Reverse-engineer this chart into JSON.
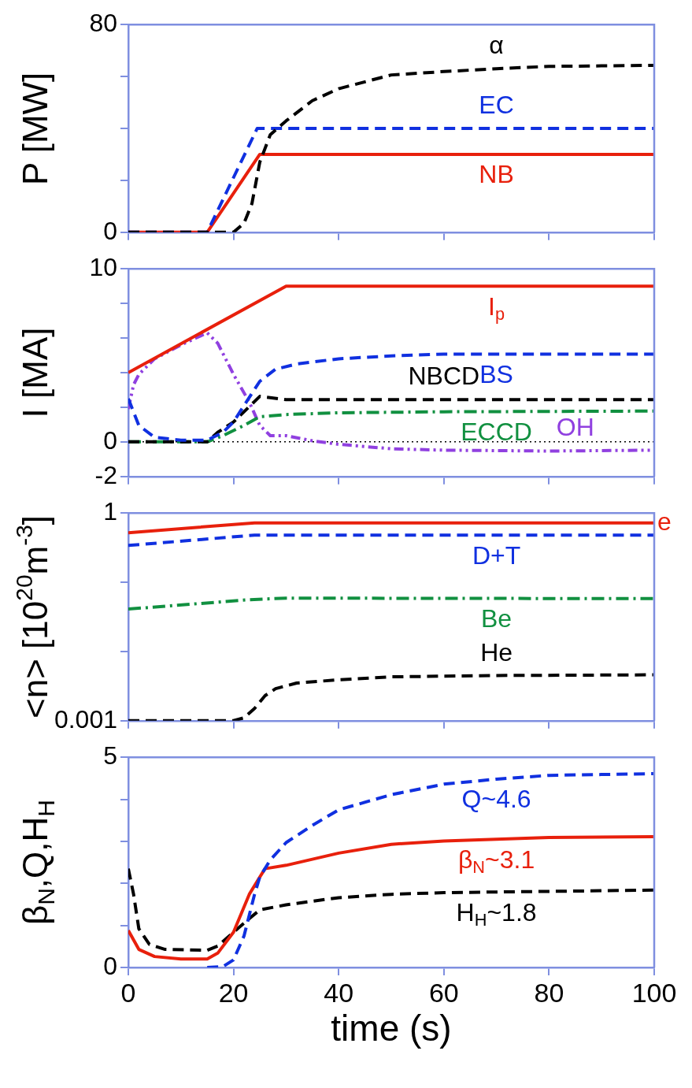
{
  "chart_data": [
    {
      "type": "line",
      "ylabel": "P [MW]",
      "xlim": [
        0,
        100
      ],
      "xticks": [
        0,
        20,
        40,
        60,
        80,
        100
      ],
      "ylim": [
        0,
        80
      ],
      "yticks": [
        0,
        {
          "value": 20,
          "label": null
        },
        {
          "value": 40,
          "label": null
        },
        {
          "value": 60,
          "label": null
        },
        80
      ],
      "tick_labels": "y",
      "grid": false,
      "legend": false,
      "marker": "none",
      "series": [
        {
          "name": "α",
          "color": "#000000",
          "line_style": "dashed",
          "x": [
            0,
            20,
            22,
            23.5,
            25,
            27,
            30,
            35,
            40,
            50,
            60,
            70,
            80,
            100
          ],
          "values": [
            0,
            0,
            3.5,
            11,
            27,
            37.6,
            42.9,
            50.7,
            55.3,
            60.6,
            61.9,
            63,
            63.9,
            64.3
          ]
        },
        {
          "name": "EC",
          "color": "#1030e0",
          "line_style": "dashed",
          "x": [
            0,
            15,
            24.5,
            100
          ],
          "values": [
            0,
            0,
            40,
            40
          ]
        },
        {
          "name": "NB",
          "color": "#e8200c",
          "line_style": "solid",
          "x": [
            0,
            15,
            25,
            100
          ],
          "values": [
            0,
            0,
            30,
            30
          ]
        }
      ]
    },
    {
      "type": "line",
      "ylabel": "I [MA]",
      "xlim": [
        0,
        100
      ],
      "xticks": [
        0,
        20,
        40,
        60,
        80,
        100
      ],
      "ylim": [
        -2,
        10
      ],
      "yticks": [
        -2,
        0,
        {
          "value": 2,
          "label": null
        },
        {
          "value": 4,
          "label": null
        },
        {
          "value": 6,
          "label": null
        },
        {
          "value": 8,
          "label": null
        },
        10
      ],
      "tick_labels": "y",
      "grid": false,
      "legend": false,
      "marker": "none",
      "ref_lines": [
        {
          "axis": "y",
          "value": 0,
          "color": "#000000",
          "line_style": "dotted"
        }
      ],
      "series": [
        {
          "name": "I$_{p}$",
          "color": "#e8200c",
          "line_style": "solid",
          "x": [
            0,
            30,
            100
          ],
          "values": [
            4,
            9,
            9
          ]
        },
        {
          "name": "BS",
          "color": "#1030e0",
          "line_style": "dashed",
          "x": [
            0,
            2,
            5,
            10,
            15,
            18,
            20,
            22,
            25,
            28,
            32,
            40,
            50,
            60,
            100
          ],
          "values": [
            2.5,
            0.95,
            0.26,
            0.1,
            0.1,
            0.55,
            1.15,
            2.1,
            3.5,
            4.2,
            4.5,
            4.8,
            4.97,
            5.07,
            5.07
          ]
        },
        {
          "name": "NBCD",
          "color": "#000000",
          "line_style": "dashed",
          "x": [
            0,
            15,
            17,
            20,
            22,
            25,
            30,
            50,
            100
          ],
          "values": [
            0,
            0,
            0.55,
            1.15,
            1.74,
            2.63,
            2.44,
            2.44,
            2.44
          ]
        },
        {
          "name": "ECCD",
          "color": "#119040",
          "line_style": "dashdot",
          "x": [
            0,
            15,
            18,
            22,
            25,
            30,
            40,
            60,
            100
          ],
          "values": [
            0,
            0,
            0.36,
            0.95,
            1.45,
            1.58,
            1.68,
            1.74,
            1.78
          ]
        },
        {
          "name": "OH",
          "color": "#9040e0",
          "line_style": "dashdotdot",
          "x": [
            0,
            1,
            2,
            5,
            10,
            15,
            17,
            20,
            23,
            25,
            27,
            30,
            35,
            40,
            50,
            60,
            80,
            100
          ],
          "values": [
            1.9,
            3.3,
            3.9,
            4.8,
            5.6,
            6.3,
            5.7,
            3.9,
            2.3,
            0.95,
            0.36,
            0.36,
            0.06,
            -0.14,
            -0.4,
            -0.48,
            -0.53,
            -0.48
          ]
        }
      ]
    },
    {
      "type": "line",
      "ylabel": "<n> [10$^{20}$m$^{-3}$]",
      "log": "y",
      "xlim": [
        0,
        100
      ],
      "xticks": [
        0,
        20,
        40,
        60,
        80,
        100
      ],
      "ylim": [
        0.001,
        1
      ],
      "yticks": [
        0.001,
        {
          "value": 0.01,
          "label": null
        },
        {
          "value": 0.1,
          "label": null
        },
        1
      ],
      "tick_labels": "y",
      "grid": false,
      "legend": false,
      "marker": "none",
      "series": [
        {
          "name": "e",
          "color": "#e8200c",
          "line_style": "solid",
          "x": [
            0,
            24,
            100
          ],
          "values": [
            0.52,
            0.72,
            0.72
          ]
        },
        {
          "name": "D+T",
          "color": "#1030e0",
          "line_style": "dashed",
          "x": [
            0,
            24,
            100
          ],
          "values": [
            0.34,
            0.48,
            0.48
          ]
        },
        {
          "name": "Be",
          "color": "#119040",
          "line_style": "dashdot",
          "x": [
            0,
            23,
            30,
            100
          ],
          "values": [
            0.041,
            0.056,
            0.059,
            0.058
          ]
        },
        {
          "name": "He",
          "color": "#000000",
          "line_style": "dashed",
          "x": [
            0,
            20,
            22,
            24,
            26,
            28,
            32,
            40,
            50,
            70,
            100
          ],
          "values": [
            0.001,
            0.001,
            0.0011,
            0.0015,
            0.0023,
            0.0029,
            0.0035,
            0.0039,
            0.0043,
            0.0045,
            0.0046
          ]
        }
      ]
    },
    {
      "type": "line",
      "ylabel": "β$_{N}$,Q,H$_{H}$",
      "xlabel": "time (s)",
      "xlim": [
        0,
        100
      ],
      "xticks": [
        0,
        20,
        40,
        60,
        80,
        100
      ],
      "ylim": [
        0,
        5
      ],
      "yticks": [
        0,
        {
          "value": 1,
          "label": null
        },
        {
          "value": 2,
          "label": null
        },
        {
          "value": 3,
          "label": null
        },
        {
          "value": 4,
          "label": null
        },
        5
      ],
      "grid": false,
      "legend": false,
      "marker": "none",
      "series": [
        {
          "name": "Q~4.6",
          "color": "#1030e0",
          "line_style": "dashed",
          "x": [
            15,
            18,
            20,
            22,
            24,
            25,
            27,
            30,
            35,
            40,
            50,
            60,
            70,
            80,
            100
          ],
          "values": [
            0,
            0.02,
            0.18,
            0.75,
            1.74,
            2.15,
            2.56,
            2.97,
            3.38,
            3.75,
            4.11,
            4.36,
            4.48,
            4.57,
            4.61
          ]
        },
        {
          "name": "β$_{N}$~3.1",
          "color": "#e8200c",
          "line_style": "solid",
          "x": [
            0,
            2,
            5,
            10,
            15,
            17,
            20,
            23,
            25,
            26,
            30,
            40,
            50,
            60,
            80,
            100
          ],
          "values": [
            0.88,
            0.43,
            0.26,
            0.2,
            0.2,
            0.34,
            0.84,
            1.74,
            2.15,
            2.35,
            2.43,
            2.72,
            2.93,
            3.01,
            3.09,
            3.11
          ]
        },
        {
          "name": "H$_{H}$~1.8",
          "color": "#000000",
          "line_style": "dashed",
          "x": [
            0,
            1,
            2,
            4,
            7,
            15,
            17,
            20,
            23,
            25,
            30,
            40,
            50,
            60,
            100
          ],
          "values": [
            2.35,
            1.74,
            0.92,
            0.55,
            0.43,
            0.41,
            0.51,
            0.84,
            1.16,
            1.37,
            1.49,
            1.66,
            1.74,
            1.78,
            1.84
          ]
        }
      ]
    }
  ]
}
